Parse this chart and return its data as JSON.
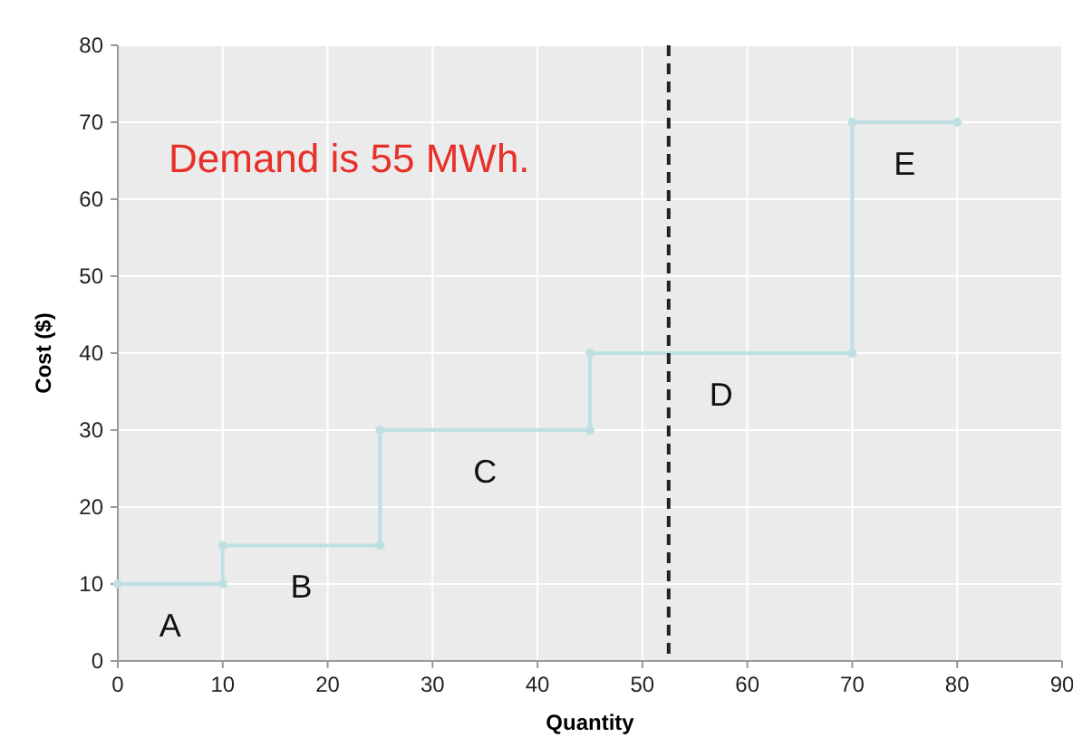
{
  "chart_data": {
    "type": "line",
    "xlabel": "Quantity",
    "ylabel": "Cost ($)",
    "x": [
      0,
      10,
      10,
      25,
      25,
      45,
      45,
      70,
      70,
      80
    ],
    "series": [
      {
        "color": "#bfe0e2",
        "values": [
          10,
          10,
          15,
          15,
          30,
          30,
          40,
          40,
          70,
          70
        ]
      }
    ],
    "xlim": [
      0,
      90
    ],
    "xticks": [
      0,
      10,
      20,
      30,
      40,
      50,
      60,
      70,
      80,
      90
    ],
    "ylim": [
      0,
      80
    ],
    "yticks": [
      0,
      10,
      20,
      30,
      40,
      50,
      60,
      70,
      80
    ],
    "grid": true,
    "marker": "circle",
    "line_style": "solid",
    "ref_lines": [
      {
        "axis": "x",
        "value": 52.5,
        "color": "#222222",
        "line_style": "dashed"
      }
    ],
    "annotations": [
      "Demand is 55 MWh.",
      "A",
      "B",
      "C",
      "D",
      "E"
    ]
  }
}
